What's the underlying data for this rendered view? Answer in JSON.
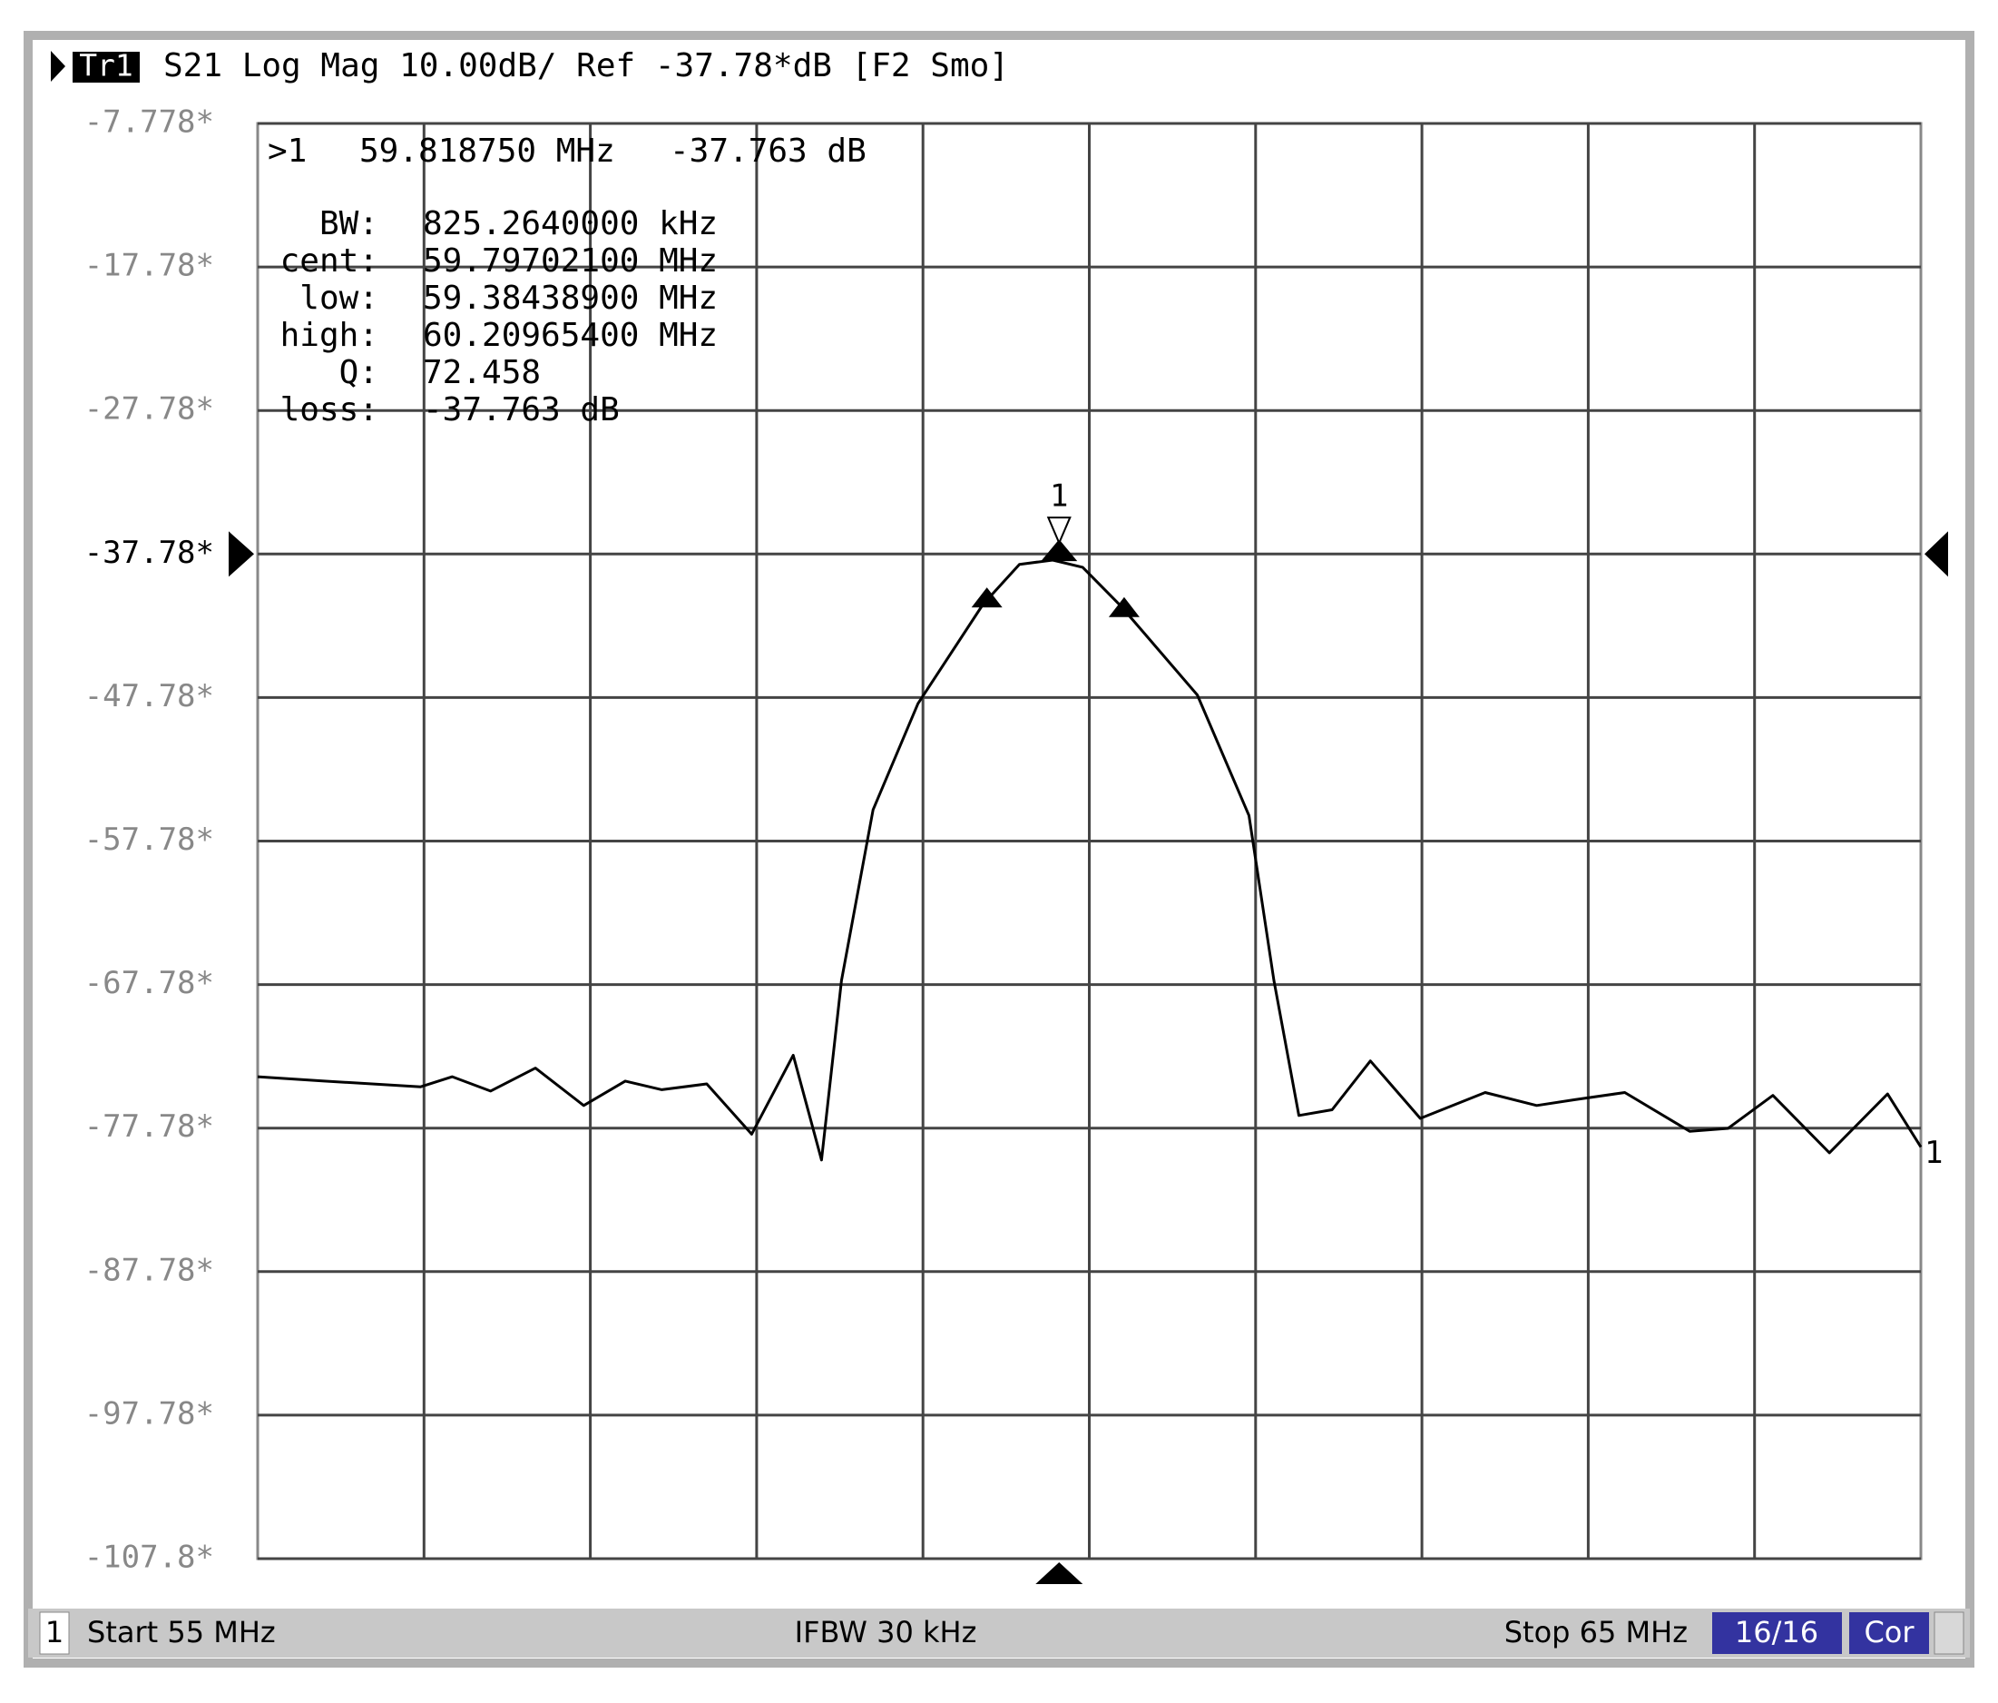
{
  "trace_header": {
    "trace": "Tr1",
    "text": "S21 Log Mag 10.00dB/ Ref -37.78*dB [F2 Smo]"
  },
  "marker_readout": {
    "id": ">1",
    "stimulus": "59.818750 MHz",
    "response": "-37.763 dB",
    "rows": [
      [
        "BW:",
        "825.2640000 kHz"
      ],
      [
        "cent:",
        "59.79702100 MHz"
      ],
      [
        "low:",
        "59.38438900 MHz"
      ],
      [
        "high:",
        "60.20965400 MHz"
      ],
      [
        "Q:",
        "72.458"
      ],
      [
        "loss:",
        "-37.763 dB"
      ]
    ]
  },
  "status_bar": {
    "channel": "1",
    "start": "Start 55 MHz",
    "ifbw": "IFBW 30 kHz",
    "stop": "Stop 65 MHz",
    "sweeps": "16/16",
    "correction": "Cor"
  },
  "chart_data": {
    "type": "line",
    "color": "#000000",
    "grid": true,
    "xlim": [
      55,
      65
    ],
    "ylim": [
      -107.778,
      -7.778
    ],
    "yticks": [
      {
        "value": -7.778,
        "label": "-7.778*"
      },
      {
        "value": -17.778,
        "label": "-17.78*"
      },
      {
        "value": -27.778,
        "label": "-27.78*"
      },
      {
        "value": -37.778,
        "label": "-37.78*"
      },
      {
        "value": -47.778,
        "label": "-47.78*"
      },
      {
        "value": -57.778,
        "label": "-57.78*"
      },
      {
        "value": -67.778,
        "label": "-67.78*"
      },
      {
        "value": -77.778,
        "label": "-77.78*"
      },
      {
        "value": -87.778,
        "label": "-87.78*"
      },
      {
        "value": -97.778,
        "label": "-97.78*"
      },
      {
        "value": -107.778,
        "label": "-107.8*"
      }
    ],
    "x": [
      55.0,
      55.4,
      55.98,
      56.17,
      56.4,
      56.67,
      56.96,
      57.21,
      57.43,
      57.7,
      57.97,
      58.22,
      58.39,
      58.51,
      58.7,
      58.97,
      59.36,
      59.58,
      59.78,
      59.96,
      60.19,
      60.65,
      60.96,
      61.11,
      61.26,
      61.46,
      61.69,
      61.99,
      62.38,
      62.69,
      62.92,
      63.22,
      63.61,
      63.84,
      64.11,
      64.45,
      64.8,
      65.0
    ],
    "values": [
      -74.2,
      -74.5,
      -74.9,
      -74.2,
      -75.2,
      -73.6,
      -76.2,
      -74.5,
      -75.1,
      -74.7,
      -78.2,
      -72.7,
      -80.0,
      -67.5,
      -55.6,
      -48.2,
      -41.3,
      -38.5,
      -38.2,
      -38.7,
      -41.4,
      -47.6,
      -56.0,
      -67.5,
      -76.9,
      -76.5,
      -73.1,
      -77.1,
      -75.3,
      -76.2,
      -75.8,
      -75.3,
      -78.0,
      -77.8,
      -75.5,
      -79.5,
      -75.4,
      -79.1
    ],
    "marker": {
      "label": "1",
      "x": 59.81875,
      "y": -37.763
    },
    "bandwidth_markers": {
      "x": [
        59.384389,
        60.209654
      ]
    },
    "trace_end_label": "1"
  }
}
